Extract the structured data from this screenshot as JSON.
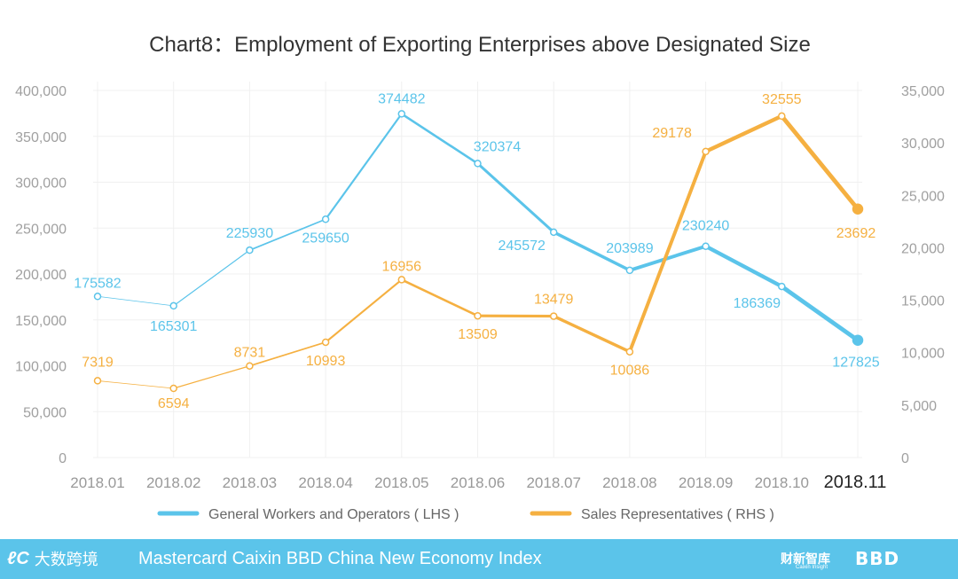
{
  "chart_data": {
    "type": "line",
    "title": "Chart8：Employment of Exporting Enterprises above Designated Size",
    "categories": [
      "2018.01",
      "2018.02",
      "2018.03",
      "2018.04",
      "2018.05",
      "2018.06",
      "2018.07",
      "2018.08",
      "2018.09",
      "2018.10",
      "2018.11"
    ],
    "left_axis": {
      "ticks": [
        "0",
        "50,000",
        "100,000",
        "150,000",
        "200,000",
        "250,000",
        "300,000",
        "350,000",
        "400,000"
      ],
      "ylim": [
        0,
        400000
      ]
    },
    "right_axis": {
      "ticks": [
        "0",
        "5,000",
        "10,000",
        "15,000",
        "20,000",
        "25,000",
        "30,000",
        "35,000"
      ],
      "ylim": [
        0,
        35000
      ]
    },
    "series": [
      {
        "name": "General Workers and Operators ( LHS )",
        "axis": "left",
        "color": "#5bc4ea",
        "values": [
          175582,
          165301,
          225930,
          259650,
          374482,
          320374,
          245572,
          203989,
          230240,
          186369,
          127825
        ]
      },
      {
        "name": "Sales Representatives ( RHS )",
        "axis": "right",
        "color": "#f5b041",
        "values": [
          7319,
          6594,
          8731,
          10993,
          16956,
          13509,
          13479,
          10086,
          29178,
          32555,
          23692
        ]
      }
    ],
    "legend_position": "bottom",
    "grid": true
  },
  "footer": {
    "title": "Mastercard Caixin BBD China New Economy Index",
    "brand_left_mark": "ℓC",
    "brand_left_text": "大数跨境",
    "brand_right": "财新智库",
    "brand_right_sub": "Caixin Insight",
    "brand_bbd": "BBD"
  }
}
